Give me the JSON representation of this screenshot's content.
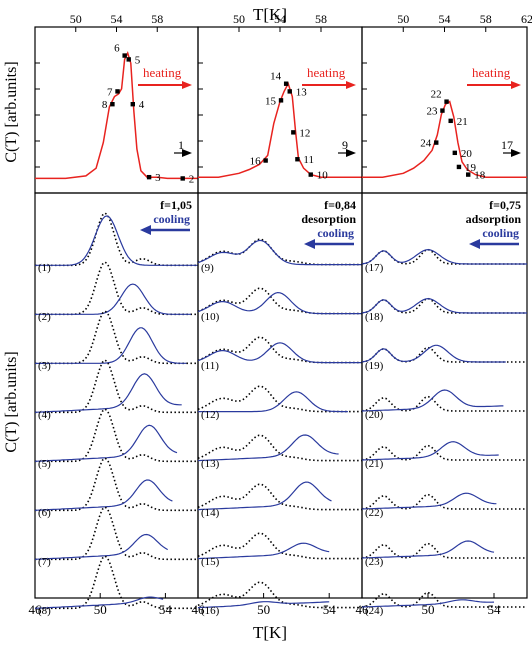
{
  "figure": {
    "top_axis_title": "T[K]",
    "bottom_axis_title": "T[K]",
    "top_ylabel": "C(T) [arb.units]",
    "bottom_ylabel": "C(T) [arb.units]",
    "colors": {
      "heating": "#e8231f",
      "cooling": "#2a3a9e",
      "reference": "#000000",
      "axis": "#000000"
    }
  },
  "chart_data": [
    {
      "type": "line",
      "panel": "top-left",
      "xlim": [
        46,
        62
      ],
      "xticks": [
        "50",
        "54",
        "58",
        "62"
      ],
      "annotation": "heating",
      "arrow_label": "1",
      "point_labels": [
        "8",
        "7",
        "6",
        "5",
        "4",
        "3",
        "2"
      ],
      "series": [
        {
          "name": "heating",
          "x": [
            46,
            49,
            51,
            52,
            52.7,
            53.3,
            53.8,
            54.2,
            54.5,
            54.8,
            55.1,
            55.4,
            55.7,
            56,
            56.4,
            57,
            58,
            59,
            60,
            61,
            62
          ],
          "y": [
            0.02,
            0.02,
            0.04,
            0.1,
            0.3,
            0.58,
            0.66,
            0.68,
            0.72,
            0.95,
            1.0,
            0.92,
            0.55,
            0.25,
            0.08,
            0.03,
            0.03,
            0.02,
            0.02,
            0.02,
            0.02
          ]
        }
      ],
      "points": [
        {
          "label": "8",
          "x": 53.6,
          "y": 0.6
        },
        {
          "label": "7",
          "x": 54.1,
          "y": 0.7
        },
        {
          "label": "6",
          "x": 54.8,
          "y": 0.98
        },
        {
          "label": "5",
          "x": 55.2,
          "y": 0.95
        },
        {
          "label": "4",
          "x": 55.6,
          "y": 0.6
        },
        {
          "label": "3",
          "x": 57.2,
          "y": 0.03
        },
        {
          "label": "2",
          "x": 60.5,
          "y": 0.02
        }
      ]
    },
    {
      "type": "line",
      "panel": "top-middle",
      "xlim": [
        46,
        62
      ],
      "xticks": [
        "50",
        "54",
        "58",
        "62"
      ],
      "annotation": "heating",
      "arrow_label": "9",
      "point_labels": [
        "16",
        "15",
        "14",
        "13",
        "12",
        "11",
        "10"
      ],
      "series": [
        {
          "name": "heating",
          "x": [
            46,
            48,
            50,
            51,
            52,
            52.8,
            53.4,
            54,
            54.4,
            54.8,
            55.2,
            55.5,
            55.8,
            56.3,
            57,
            58,
            59,
            60,
            61,
            62
          ],
          "y": [
            0.03,
            0.03,
            0.06,
            0.09,
            0.13,
            0.2,
            0.45,
            0.62,
            0.7,
            0.76,
            0.66,
            0.4,
            0.18,
            0.1,
            0.05,
            0.03,
            0.03,
            0.03,
            0.03,
            0.03
          ]
        }
      ],
      "points": [
        {
          "label": "16",
          "x": 52.6,
          "y": 0.16
        },
        {
          "label": "15",
          "x": 54.1,
          "y": 0.63
        },
        {
          "label": "14",
          "x": 54.6,
          "y": 0.76
        },
        {
          "label": "13",
          "x": 54.95,
          "y": 0.7
        },
        {
          "label": "12",
          "x": 55.3,
          "y": 0.38
        },
        {
          "label": "11",
          "x": 55.7,
          "y": 0.17
        },
        {
          "label": "10",
          "x": 57.0,
          "y": 0.05
        }
      ]
    },
    {
      "type": "line",
      "panel": "top-right",
      "xlim": [
        46,
        62
      ],
      "xticks": [
        "50",
        "54",
        "58",
        "62"
      ],
      "annotation": "heating",
      "arrow_label": "17",
      "point_labels": [
        "24",
        "23",
        "22",
        "21",
        "20",
        "19",
        "18"
      ],
      "series": [
        {
          "name": "heating",
          "x": [
            46,
            48,
            50,
            51,
            52,
            52.8,
            53.3,
            53.7,
            54.1,
            54.5,
            54.9,
            55.3,
            55.7,
            56.2,
            57,
            58,
            59,
            60,
            61,
            62
          ],
          "y": [
            0.03,
            0.03,
            0.06,
            0.1,
            0.16,
            0.24,
            0.36,
            0.52,
            0.6,
            0.62,
            0.5,
            0.3,
            0.15,
            0.09,
            0.05,
            0.03,
            0.03,
            0.03,
            0.03,
            0.03
          ]
        }
      ],
      "points": [
        {
          "label": "24",
          "x": 53.2,
          "y": 0.3
        },
        {
          "label": "23",
          "x": 53.8,
          "y": 0.55
        },
        {
          "label": "22",
          "x": 54.2,
          "y": 0.62
        },
        {
          "label": "21",
          "x": 54.6,
          "y": 0.47
        },
        {
          "label": "20",
          "x": 55.0,
          "y": 0.22
        },
        {
          "label": "19",
          "x": 55.4,
          "y": 0.11
        },
        {
          "label": "18",
          "x": 56.3,
          "y": 0.05
        }
      ]
    },
    {
      "type": "line",
      "panel": "bottom-left",
      "xlim": [
        46,
        56
      ],
      "xticks": [
        "46",
        "50",
        "54"
      ],
      "annotation_top": "f=1,05",
      "annotation": "cooling",
      "curve_labels": [
        "(1)",
        "(2)",
        "(3)",
        "(4)",
        "(5)",
        "(6)",
        "(7)",
        "(8)"
      ]
    },
    {
      "type": "line",
      "panel": "bottom-middle",
      "xlim": [
        46,
        56
      ],
      "xticks": [
        "46",
        "50",
        "54"
      ],
      "annotation_top": "f=0,84",
      "annotation_sub": "desorption",
      "annotation": "cooling",
      "curve_labels": [
        "(9)",
        "(10)",
        "(11)",
        "(12)",
        "(13)",
        "(14)",
        "(15)",
        "(16)"
      ]
    },
    {
      "type": "line",
      "panel": "bottom-right",
      "xlim": [
        46,
        56
      ],
      "xticks": [
        "46",
        "50",
        "54"
      ],
      "annotation_top": "f=0,75",
      "annotation_sub": "adsorption",
      "annotation": "cooling",
      "curve_labels": [
        "(17)",
        "(18)",
        "(19)",
        "(20)",
        "(21)",
        "(22)",
        "(23)",
        "(24)"
      ]
    }
  ]
}
